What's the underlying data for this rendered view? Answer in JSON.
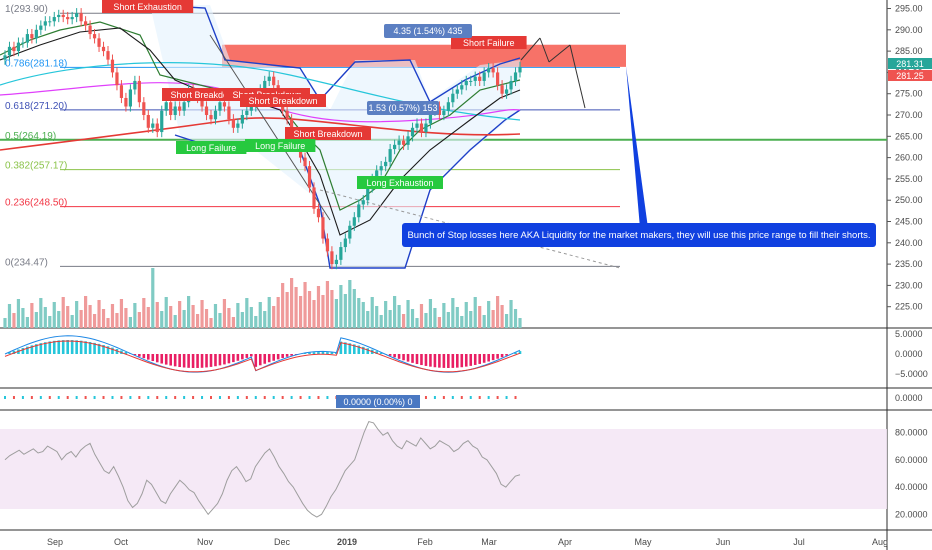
{
  "chart_data": [
    {
      "type": "candlestick",
      "price_axis": {
        "ticks": [
          "295.00",
          "290.00",
          "285.00",
          "280.00",
          "275.00",
          "270.00",
          "265.00",
          "260.00",
          "255.00",
          "250.00",
          "245.00",
          "240.00",
          "235.00",
          "230.00",
          "225.00"
        ],
        "ylim": [
          220,
          297
        ],
        "current_price_label": "281.31",
        "secondary_price_label": "281.25",
        "current_price_color": "#26a69a",
        "secondary_price_color": "#ef5350"
      },
      "time_axis": {
        "ticks": [
          "Sep",
          "Oct",
          "Nov",
          "Dec",
          "2019",
          "Feb",
          "Mar",
          "Apr",
          "May",
          "Jun",
          "Jul",
          "Aug"
        ]
      },
      "close": [
        284,
        286,
        285,
        287,
        287,
        289,
        288,
        290,
        291,
        292,
        292,
        293,
        293.5,
        293,
        292.5,
        293,
        293.9,
        292,
        291,
        289,
        288,
        286,
        285,
        283,
        280,
        277,
        274,
        272,
        276,
        278,
        273,
        270,
        267,
        268,
        266,
        271,
        273,
        270,
        272,
        271,
        273,
        276,
        275,
        274,
        272,
        270,
        269,
        271,
        273,
        272,
        269,
        267,
        268,
        270,
        271,
        272,
        274,
        276,
        278,
        279,
        277,
        274,
        271,
        269,
        266,
        263,
        260,
        258,
        253,
        248,
        246,
        241,
        238,
        235,
        236,
        239,
        241,
        244,
        246,
        249,
        250,
        253,
        255,
        257,
        258,
        259,
        262,
        263,
        264,
        263,
        265,
        267,
        268,
        266,
        268,
        271,
        272,
        270,
        271,
        273,
        275,
        276,
        277,
        278,
        278,
        279,
        278,
        280,
        281,
        280,
        277,
        275,
        276,
        278,
        280,
        281.3
      ],
      "fib_levels": [
        {
          "label": "1(293.90)",
          "price": 293.9,
          "color": "#787b86"
        },
        {
          "label": "0.786(281.18)",
          "price": 281.18,
          "color": "#2196f3"
        },
        {
          "label": "0.618(271.20)",
          "price": 271.2,
          "color": "#3f51b5"
        },
        {
          "label": "0.5(264.19)",
          "price": 264.19,
          "color": "#4caf50"
        },
        {
          "label": "0.382(257.17)",
          "price": 257.17,
          "color": "#8bc34a"
        },
        {
          "label": "0.236(248.50)",
          "price": 248.5,
          "color": "#f23645"
        },
        {
          "label": "0(234.47)",
          "price": 234.47,
          "color": "#787b86"
        }
      ],
      "signals": [
        {
          "text": "Short Exhaustion",
          "type": "short"
        },
        {
          "text": "Short Breakdown",
          "type": "short"
        },
        {
          "text": "Short Breakdown",
          "type": "short"
        },
        {
          "text": "Short Breakdown",
          "type": "short"
        },
        {
          "text": "Short Breakdown",
          "type": "short"
        },
        {
          "text": "Long Failure",
          "type": "long"
        },
        {
          "text": "Long Failure",
          "type": "long"
        },
        {
          "text": "Long Exhaustion",
          "type": "long"
        },
        {
          "text": "Short Failure",
          "type": "short"
        }
      ],
      "measure_labels": [
        "4.35 (1.54%) 435",
        "1.53 (0.57%) 153"
      ],
      "note": "Bunch of Stop losses here AKA Liquidity for the market makers, they will use this price range to fill their shorts."
    },
    {
      "type": "bar",
      "panel": "macd",
      "ticks": [
        "5.0000",
        "0.0000",
        "−5.0000"
      ],
      "ylim": [
        -8,
        6
      ]
    },
    {
      "type": "bar",
      "panel": "oscillator",
      "ticks": [
        "0.0000"
      ],
      "value_label": "0.0000 (0.00%) 0"
    },
    {
      "type": "line",
      "panel": "rsi",
      "ticks": [
        "80.0000",
        "60.0000",
        "40.0000",
        "20.0000"
      ],
      "ylim": [
        10,
        95
      ],
      "values": [
        60,
        63,
        65,
        67,
        64,
        66,
        68,
        65,
        66,
        70,
        68,
        66,
        60,
        64,
        66,
        62,
        67,
        70,
        72,
        64,
        58,
        52,
        50,
        55,
        48,
        40,
        30,
        25,
        28,
        35,
        45,
        42,
        36,
        30,
        28,
        35,
        40,
        45,
        42,
        38,
        36,
        30,
        25,
        20,
        24,
        28,
        35,
        45,
        52,
        55,
        50,
        44,
        46,
        55,
        60,
        65,
        68,
        62,
        55,
        50,
        44,
        40,
        34,
        28,
        23,
        20,
        18,
        20,
        26,
        33,
        38,
        45,
        52,
        56,
        60,
        70,
        80,
        88,
        87,
        82,
        78,
        80,
        74,
        70,
        68,
        74,
        72,
        70,
        76,
        72,
        68,
        70,
        74,
        72,
        70,
        66,
        68,
        72,
        74,
        70,
        68,
        62,
        60,
        55,
        50,
        42,
        40,
        44,
        48,
        49
      ]
    }
  ]
}
